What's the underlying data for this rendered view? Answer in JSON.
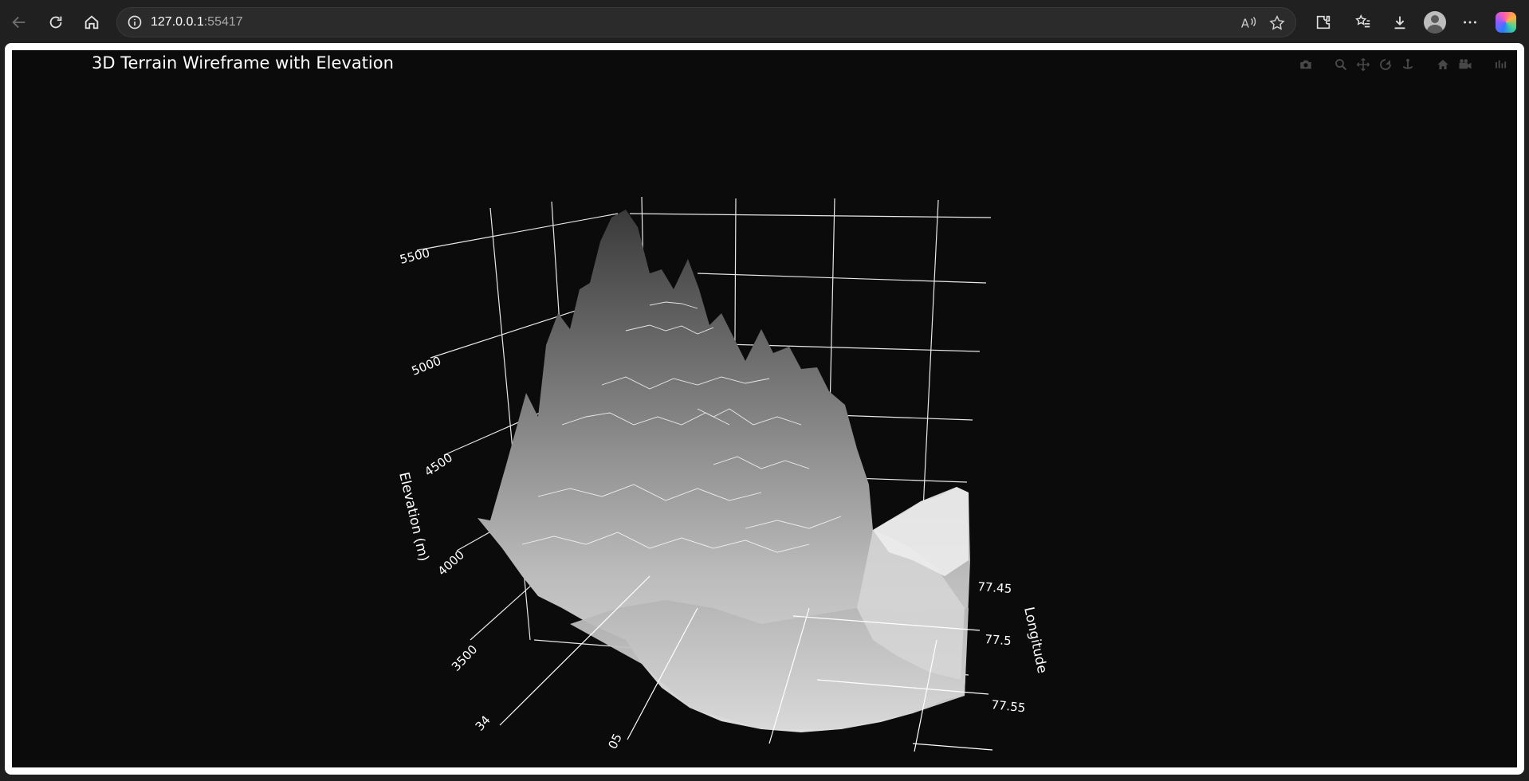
{
  "browser": {
    "url_host": "127.0.0.1",
    "url_port": ":55417"
  },
  "plot": {
    "title": "3D Terrain Wireframe with Elevation",
    "z_axis_title": "Elevation (m)",
    "y_axis_title": "Longitude",
    "modebar_icons": [
      "camera-icon",
      "zoom-icon",
      "pan-icon",
      "orbit-icon",
      "turntable-icon",
      "home-icon",
      "camera-view-icon",
      "plotly-logo-icon"
    ]
  },
  "chart_data": {
    "type": "surface",
    "title": "3D Terrain Wireframe with Elevation",
    "z_axis": {
      "title": "Elevation (m)",
      "ticks": [
        "3500",
        "4000",
        "4500",
        "5000",
        "5500"
      ]
    },
    "x_axis": {
      "title": "",
      "ticks": [
        "34",
        "05"
      ]
    },
    "y_axis": {
      "title": "Longitude",
      "ticks": [
        "77.45",
        "77.5",
        "77.55"
      ]
    },
    "colorscale": "greys",
    "background": "#0b0b0b"
  }
}
